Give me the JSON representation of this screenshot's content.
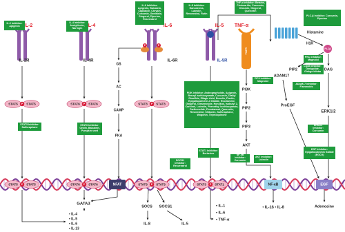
{
  "nodes": [
    "IL-2",
    "IL-2R",
    "IL-4",
    "IL-4R",
    "IL-6",
    "IL-6R",
    "IL-5",
    "IL-5R",
    "TNF-α",
    "TNFR",
    "Histamine",
    "H1R",
    "PLCβ",
    "PIP2",
    "DAG",
    "ADAM17",
    "ProEGF",
    "ERK1/2",
    "EGF",
    "Adenosine",
    "GS",
    "AC",
    "CAMP",
    "PKA",
    "NFAT",
    "PI3K",
    "PIP2",
    "PIP3",
    "AKT",
    "NF-κB",
    "GATA3",
    "• IL-4",
    "• IL-5",
    "• IL-6",
    "• IL-13",
    "SOCS",
    "SOCS1",
    "IL-8",
    "IL-5",
    "• IL-1",
    "• IL-6",
    "• TNF-α",
    "• IL-1ß  • IL-8"
  ],
  "phospho": "P",
  "stat_pairs": [
    [
      "STAT5",
      "STAT5"
    ],
    [
      "STAT6",
      "STAT6"
    ],
    [
      "STAT3",
      "STAT3"
    ],
    [
      "STAT3",
      "STAT1"
    ],
    [
      "STAT5",
      "STAT5"
    ],
    [
      "STAT6",
      "STAT6"
    ],
    [
      "STAT3",
      "STAT3"
    ],
    [
      "STAT3",
      "STAT1"
    ]
  ],
  "inhibitors": [
    "IL-2 Inhibitor: Apigenin",
    "IL-4 Inhibitor: Acetylforrin, Naringin",
    "IL-6 Inhibitor: Apigenin, Baicalein, Capsaicin, Chrysin, Curcumin, Genistein, Gingerol, Piperine, Resveratrol",
    "IL-5 Inhibitor: Ganoderma, Luteolin, Resveratrol, Rutin",
    "TNF-α Inhibitor: Betaine, Cirsimaritin, Curcumin, Diosmin, Gingerol, Quercetin",
    "PLC-β Inhibitor: Curcumin, Piperine",
    "STAT5 Inhibitor: Sulforaphane",
    "STAT6 Inhibitor: Oridin, Baicalein, Pumpkin seed",
    "PIP3 Inhibitor: Magnolol",
    "PKC Inhibitor: Magnolol",
    "Lipid Inhibitor: Ginkgolide, Ginkgo biloba",
    "ADAM17 Inhibitor: Flavonoids",
    "PI3K Inhibitor: Andrographolide, Apigenin, Benzyl Isothiocyanate, Curcumin, Diallyl Disulfide, Ellagic Acid, Emodin, Fisetin, Epigallocatechin-3 Gallate, Evodiamine, Gingerol, Ginsenoside, Honokiol, Isobutyl 2, Carbinol, Luteolin, Phenethyl Isothiocyanate, Parthenolide, Piceatannol, Quercetin, Resveratrol, Shikonin, Sulforaphane, Wogonin, Thymoquinone",
    "STAT1 Inhibitor: Berberine",
    "NF-κB Inhibitor: Curcumin",
    "AKT Inhibitor: Luteolin",
    "SOCS1 Inhibitor: Resveratrol",
    "ERK1/2 Inhibitor: Curcumin",
    "EGF Inhibitor: Epigallocatechin Gallate (EGCG)"
  ]
}
